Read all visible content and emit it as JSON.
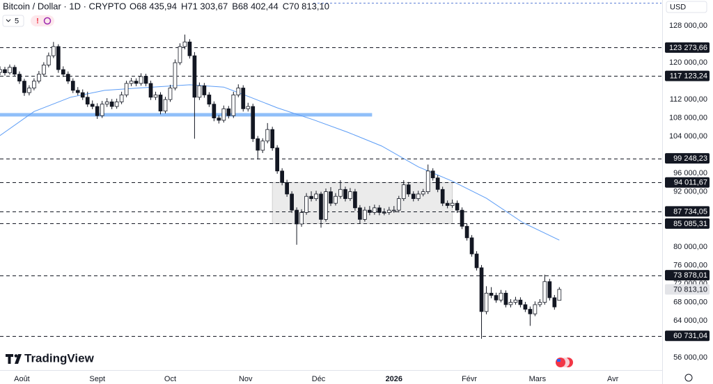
{
  "chart_data": {
    "type": "candlestick",
    "title": "Bitcoin / Dollar · 1D · CRYPTO",
    "ohlc_legend": [
      {
        "label": "O",
        "value": "68 435,94"
      },
      {
        "label": "H",
        "value": "71 303,67"
      },
      {
        "label": "B",
        "value": "68 402,44"
      },
      {
        "label": "C",
        "value": "70 813,10"
      }
    ],
    "interval_count": "5",
    "currency": "USD",
    "brand": "TradingView",
    "up_color": "#ffffff",
    "down_color": "#131722",
    "x": [
      0,
      2,
      4,
      6,
      8,
      10,
      12,
      14,
      16,
      18,
      20,
      22,
      24,
      26,
      28,
      30,
      32,
      34,
      36,
      38,
      40,
      42,
      44,
      46,
      48,
      50,
      52,
      54,
      56,
      58,
      60,
      62,
      64,
      66,
      68,
      70,
      72,
      74,
      76,
      78,
      80,
      82,
      84,
      86,
      88,
      90,
      92,
      94,
      96,
      98,
      100,
      102,
      104,
      106,
      108,
      110,
      112,
      114,
      116,
      118,
      120,
      122,
      124,
      126,
      128,
      130,
      132,
      134,
      136,
      138,
      140,
      142,
      144,
      146,
      148,
      150,
      152,
      154,
      156,
      158,
      160,
      162,
      164,
      166,
      168,
      170,
      172,
      174,
      176,
      178,
      180,
      182,
      184,
      186,
      188,
      190,
      192,
      194,
      196,
      198,
      200,
      202,
      204,
      206,
      208,
      210,
      212,
      214,
      216,
      218,
      220,
      222,
      224,
      226,
      228,
      230
    ],
    "candles": [
      [
        117900,
        119200,
        117300,
        118500
      ],
      [
        118500,
        119100,
        117200,
        117800
      ],
      [
        117800,
        119600,
        117400,
        119000
      ],
      [
        119000,
        119500,
        117000,
        117500
      ],
      [
        117500,
        118100,
        115400,
        116000
      ],
      [
        116000,
        116500,
        112800,
        113500
      ],
      [
        113500,
        115100,
        112900,
        114500
      ],
      [
        114500,
        116600,
        114000,
        116000
      ],
      [
        116000,
        118200,
        115500,
        117500
      ],
      [
        117500,
        120100,
        117000,
        119500
      ],
      [
        119500,
        122200,
        119000,
        121500
      ],
      [
        121500,
        124500,
        121000,
        123500
      ],
      [
        123500,
        124000,
        117800,
        118500
      ],
      [
        118500,
        119200,
        116900,
        117500
      ],
      [
        117500,
        118100,
        115400,
        116000
      ],
      [
        116000,
        116600,
        113400,
        114000
      ],
      [
        114000,
        114700,
        112900,
        113500
      ],
      [
        113500,
        114200,
        111900,
        112500
      ],
      [
        112500,
        113700,
        110400,
        111000
      ],
      [
        111000,
        111800,
        109900,
        110500
      ],
      [
        110500,
        111200,
        107800,
        108500
      ],
      [
        108500,
        111700,
        108000,
        111000
      ],
      [
        111000,
        112300,
        110400,
        111500
      ],
      [
        111500,
        112100,
        109900,
        110500
      ],
      [
        110500,
        112200,
        110000,
        111500
      ],
      [
        111500,
        113700,
        111000,
        113000
      ],
      [
        113000,
        116100,
        112500,
        115500
      ],
      [
        115500,
        116700,
        114900,
        116000
      ],
      [
        116000,
        116600,
        114900,
        115500
      ],
      [
        115500,
        117700,
        115000,
        117000
      ],
      [
        117000,
        117600,
        114900,
        115500
      ],
      [
        115500,
        116100,
        111900,
        112500
      ],
      [
        112500,
        113700,
        111900,
        113000
      ],
      [
        113000,
        113600,
        108800,
        109500
      ],
      [
        109500,
        112600,
        109000,
        112000
      ],
      [
        112000,
        115200,
        111500,
        114500
      ],
      [
        114500,
        120700,
        114000,
        120000
      ],
      [
        120000,
        124200,
        119500,
        123500
      ],
      [
        123500,
        126100,
        122900,
        124500
      ],
      [
        124500,
        125100,
        120900,
        121500
      ],
      [
        121500,
        122300,
        103500,
        112500
      ],
      [
        112500,
        115700,
        111900,
        115000
      ],
      [
        115000,
        115600,
        112400,
        113000
      ],
      [
        113000,
        113600,
        110400,
        111000
      ],
      [
        111000,
        111600,
        107300,
        108000
      ],
      [
        108000,
        108600,
        106800,
        107500
      ],
      [
        107500,
        110700,
        107000,
        110000
      ],
      [
        110000,
        110600,
        107900,
        108500
      ],
      [
        108500,
        113700,
        108000,
        113000
      ],
      [
        113000,
        115300,
        112500,
        114500
      ],
      [
        114500,
        115100,
        109400,
        110000
      ],
      [
        110000,
        111300,
        109400,
        110500
      ],
      [
        110500,
        111100,
        102800,
        103500
      ],
      [
        103500,
        104100,
        99000,
        101000
      ],
      [
        101000,
        103600,
        100400,
        103000
      ],
      [
        103000,
        106900,
        102500,
        105500
      ],
      [
        105500,
        106100,
        100900,
        101500
      ],
      [
        101500,
        102100,
        95900,
        96500
      ],
      [
        96500,
        97100,
        93400,
        94000
      ],
      [
        94000,
        94600,
        90900,
        91500
      ],
      [
        91500,
        92100,
        87400,
        88000
      ],
      [
        88000,
        88600,
        80500,
        85000
      ],
      [
        85000,
        88200,
        84400,
        87500
      ],
      [
        87500,
        91700,
        87000,
        91000
      ],
      [
        91000,
        92100,
        89900,
        90500
      ],
      [
        90500,
        92200,
        90000,
        91500
      ],
      [
        91500,
        92000,
        84200,
        86000
      ],
      [
        86000,
        92700,
        85500,
        92000
      ],
      [
        92000,
        93000,
        88900,
        89500
      ],
      [
        89500,
        91700,
        89000,
        91000
      ],
      [
        91000,
        94500,
        90500,
        92500
      ],
      [
        92500,
        93100,
        89900,
        90500
      ],
      [
        90500,
        92800,
        90000,
        92000
      ],
      [
        92000,
        92600,
        87900,
        88500
      ],
      [
        88500,
        89100,
        85000,
        86000
      ],
      [
        86000,
        88700,
        85500,
        88000
      ],
      [
        88000,
        88900,
        86900,
        87500
      ],
      [
        87500,
        89200,
        87000,
        88500
      ],
      [
        88500,
        89100,
        86900,
        87500
      ],
      [
        87500,
        88400,
        86900,
        87500
      ],
      [
        87500,
        88700,
        87000,
        88000
      ],
      [
        88000,
        88900,
        87400,
        88000
      ],
      [
        88000,
        91100,
        87500,
        90500
      ],
      [
        90500,
        94500,
        90000,
        93500
      ],
      [
        93500,
        94100,
        90900,
        91500
      ],
      [
        91500,
        92100,
        89900,
        90500
      ],
      [
        90500,
        92200,
        90000,
        91500
      ],
      [
        91500,
        92600,
        91000,
        92000
      ],
      [
        92000,
        97900,
        91500,
        96500
      ],
      [
        96500,
        97100,
        94400,
        95000
      ],
      [
        95000,
        95600,
        91900,
        92500
      ],
      [
        92500,
        93100,
        88900,
        89500
      ],
      [
        89500,
        90100,
        88400,
        89000
      ],
      [
        89000,
        90300,
        88500,
        89500
      ],
      [
        89500,
        90100,
        87400,
        88000
      ],
      [
        88000,
        88600,
        83900,
        84500
      ],
      [
        84500,
        85100,
        81400,
        82000
      ],
      [
        82000,
        82600,
        77900,
        78500
      ],
      [
        78500,
        79100,
        74900,
        75500
      ],
      [
        75500,
        76100,
        60100,
        66000
      ],
      [
        66000,
        71500,
        65400,
        70000
      ],
      [
        70000,
        71300,
        68900,
        69500
      ],
      [
        69500,
        70100,
        67900,
        68500
      ],
      [
        68500,
        70700,
        68000,
        70000
      ],
      [
        70000,
        70600,
        66900,
        67500
      ],
      [
        67500,
        68700,
        66900,
        68000
      ],
      [
        68000,
        69200,
        67500,
        68500
      ],
      [
        68500,
        69100,
        66900,
        67500
      ],
      [
        67500,
        68100,
        65900,
        66500
      ],
      [
        66500,
        67100,
        62900,
        65500
      ],
      [
        65500,
        68200,
        65000,
        67500
      ],
      [
        67500,
        68700,
        67000,
        68000
      ],
      [
        68000,
        74000,
        67500,
        72500
      ],
      [
        72500,
        73100,
        68400,
        69000
      ],
      [
        69000,
        69600,
        66400,
        67000
      ],
      [
        68435.94,
        71303.67,
        68402.44,
        70813.1
      ]
    ],
    "moving_average": {
      "color": "#5b9cf6",
      "x": [
        0,
        14,
        29,
        43,
        57,
        78,
        92,
        103,
        114,
        129,
        143,
        157,
        172,
        186,
        200,
        215,
        230
      ],
      "values": [
        104200,
        109400,
        112500,
        114000,
        114500,
        115200,
        114700,
        112500,
        110200,
        107600,
        104900,
        101900,
        97400,
        94300,
        90600,
        85300,
        81500
      ]
    },
    "support_band": {
      "value": 108700,
      "x": [
        0,
        153
      ],
      "color": "#90bff9"
    },
    "range_box": {
      "x": [
        112,
        186
      ],
      "y": [
        94011.67,
        85085.31
      ],
      "color": "#e8e8e8"
    },
    "levels": [
      {
        "value": 123273.66,
        "label": "123 273,66"
      },
      {
        "value": 117123.24,
        "label": "117 123,24"
      },
      {
        "value": 99248.23,
        "label": "99 248,23"
      },
      {
        "value": 94011.67,
        "label": "94 011,67"
      },
      {
        "value": 87734.05,
        "label": "87 734,05"
      },
      {
        "value": 85085.31,
        "label": "85 085,31"
      },
      {
        "value": 73878.01,
        "label": "73 878,01"
      },
      {
        "value": 60731.04,
        "label": "60 731,04"
      }
    ],
    "last_price": {
      "value": 70813.1,
      "label": "70 813,10"
    },
    "xlim": [
      0,
      272
    ],
    "ylim": [
      53300,
      133600
    ],
    "xticks": [
      {
        "value": 9,
        "label": "Août"
      },
      {
        "value": 40,
        "label": "Sept"
      },
      {
        "value": 70,
        "label": "Oct"
      },
      {
        "value": 101,
        "label": "Nov"
      },
      {
        "value": 131,
        "label": "Déc"
      },
      {
        "value": 162,
        "label": "2026"
      },
      {
        "value": 193,
        "label": "Févr"
      },
      {
        "value": 221,
        "label": "Mars"
      },
      {
        "value": 252,
        "label": "Avr"
      }
    ],
    "yticks": [
      {
        "value": 128000,
        "label": "128 000,00"
      },
      {
        "value": 120000,
        "label": "120 000,00"
      },
      {
        "value": 112000,
        "label": "112 000,00"
      },
      {
        "value": 108000,
        "label": "108 000,00"
      },
      {
        "value": 104000,
        "label": "104 000,00"
      },
      {
        "value": 96000,
        "label": "96 000,00"
      },
      {
        "value": 92000,
        "label": "92 000,00"
      },
      {
        "value": 80000,
        "label": "80 000,00"
      },
      {
        "value": 76000,
        "label": "76 000,00"
      },
      {
        "value": 72000,
        "label": "72 000,00"
      },
      {
        "value": 68000,
        "label": "68 000,00"
      },
      {
        "value": 64000,
        "label": "64 000,00"
      },
      {
        "value": 56000,
        "label": "56 000,00"
      }
    ]
  }
}
